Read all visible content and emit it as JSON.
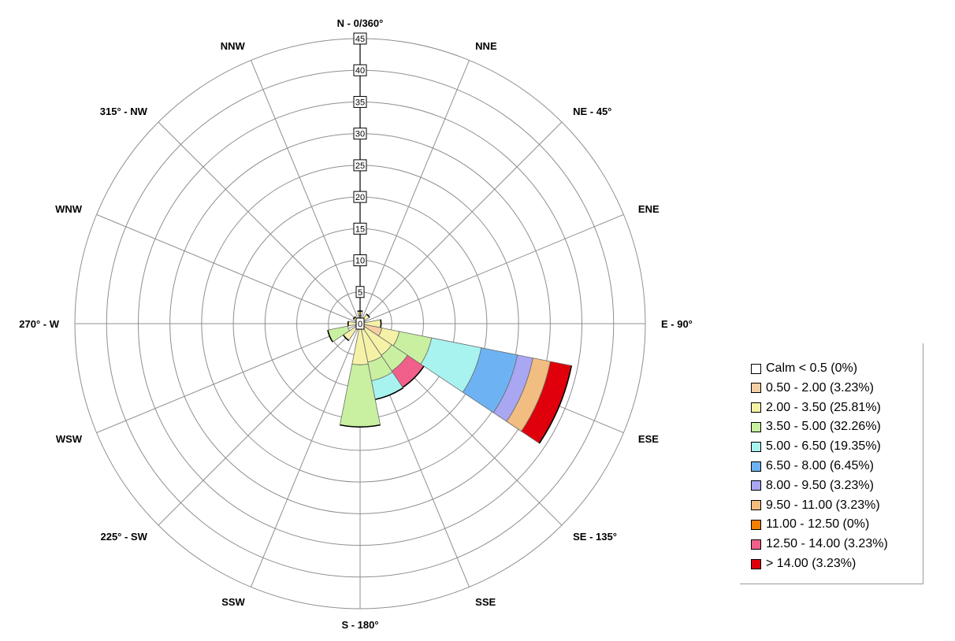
{
  "chart_data": {
    "type": "wind-rose",
    "radial_max": 45,
    "radial_ticks": [
      "0",
      "5",
      "10",
      "15",
      "20",
      "25",
      "30",
      "35",
      "40",
      "45"
    ],
    "directions": [
      {
        "label": "N - 0/360°",
        "angle": 0
      },
      {
        "label": "NNE",
        "angle": 22.5
      },
      {
        "label": "NE - 45°",
        "angle": 45
      },
      {
        "label": "ENE",
        "angle": 67.5
      },
      {
        "label": "E - 90°",
        "angle": 90
      },
      {
        "label": "ESE",
        "angle": 112.5
      },
      {
        "label": "SE - 135°",
        "angle": 135
      },
      {
        "label": "SSE",
        "angle": 157.5
      },
      {
        "label": "S - 180°",
        "angle": 180
      },
      {
        "label": "SSW",
        "angle": 202.5
      },
      {
        "label": "225° - SW",
        "angle": 225
      },
      {
        "label": "WSW",
        "angle": 247.5
      },
      {
        "label": "270° - W",
        "angle": 270
      },
      {
        "label": "WNW",
        "angle": 292.5
      },
      {
        "label": "315° - NW",
        "angle": 315
      },
      {
        "label": "NNW",
        "angle": 337.5
      }
    ],
    "legend": [
      {
        "label": "Calm < 0.5 (0%)",
        "color": "#ffffff"
      },
      {
        "label": "0.50 - 2.00 (3.23%)",
        "color": "#f5cfa3"
      },
      {
        "label": "2.00 - 3.50 (25.81%)",
        "color": "#f5f2a8"
      },
      {
        "label": "3.50 - 5.00 (32.26%)",
        "color": "#c9f0a0"
      },
      {
        "label": "5.00 - 6.50 (19.35%)",
        "color": "#a8f3ef"
      },
      {
        "label": "6.50 - 8.00 (6.45%)",
        "color": "#6db3f3"
      },
      {
        "label": "8.00 - 9.50 (3.23%)",
        "color": "#a9a6f2"
      },
      {
        "label": "9.50 - 11.00 (3.23%)",
        "color": "#f2bd80"
      },
      {
        "label": "11.00 - 12.50 (0%)",
        "color": "#f47f00"
      },
      {
        "label": "12.50 - 14.00 (3.23%)",
        "color": "#f0608a"
      },
      {
        "label": "> 14.00 (3.23%)",
        "color": "#e0000b"
      }
    ],
    "petals": [
      {
        "direction": "N",
        "angle": 0,
        "bands": [
          {
            "class": 1,
            "from": 0,
            "to": 1.3
          },
          {
            "class": 2,
            "from": 1.3,
            "to": 2.0
          }
        ]
      },
      {
        "direction": "NE",
        "angle": 45,
        "bands": [
          {
            "class": 2,
            "from": 0,
            "to": 1.8
          }
        ]
      },
      {
        "direction": "E",
        "angle": 90,
        "bands": [
          {
            "class": 2,
            "from": 0,
            "to": 3.3
          }
        ]
      },
      {
        "direction": "ESE",
        "angle": 112.5,
        "bands": [
          {
            "class": 1,
            "from": 0,
            "to": 3.5
          },
          {
            "class": 2,
            "from": 3.5,
            "to": 6.3
          },
          {
            "class": 3,
            "from": 6.3,
            "to": 11.5
          },
          {
            "class": 4,
            "from": 11.5,
            "to": 19.5
          },
          {
            "class": 5,
            "from": 19.5,
            "to": 25.3
          },
          {
            "class": 6,
            "from": 25.3,
            "to": 27.8
          },
          {
            "class": 7,
            "from": 27.8,
            "to": 30.6
          },
          {
            "class": 10,
            "from": 30.6,
            "to": 34.0
          }
        ]
      },
      {
        "direction": "SE",
        "angle": 135,
        "bands": [
          {
            "class": 2,
            "from": 0,
            "to": 6.0
          },
          {
            "class": 3,
            "from": 6.0,
            "to": 9.0
          },
          {
            "class": 9,
            "from": 9.0,
            "to": 12.1
          }
        ]
      },
      {
        "direction": "SSE",
        "angle": 157.5,
        "bands": [
          {
            "class": 2,
            "from": 0,
            "to": 6.2
          },
          {
            "class": 3,
            "from": 6.2,
            "to": 9.2
          },
          {
            "class": 4,
            "from": 9.2,
            "to": 12.2
          }
        ]
      },
      {
        "direction": "S",
        "angle": 180,
        "bands": [
          {
            "class": 2,
            "from": 0,
            "to": 6.5
          },
          {
            "class": 3,
            "from": 6.5,
            "to": 16.3
          }
        ]
      },
      {
        "direction": "SW",
        "angle": 225,
        "bands": [
          {
            "class": 2,
            "from": 0,
            "to": 3.2
          }
        ]
      },
      {
        "direction": "WSW",
        "angle": 247.5,
        "bands": [
          {
            "class": 3,
            "from": 2.0,
            "to": 5.2
          }
        ]
      },
      {
        "direction": "W",
        "angle": 270,
        "bands": [
          {
            "class": 2,
            "from": 0,
            "to": 1.9
          }
        ]
      },
      {
        "direction": "NW",
        "angle": 315,
        "bands": [
          {
            "class": 2,
            "from": 0,
            "to": 1.3
          }
        ]
      }
    ]
  }
}
